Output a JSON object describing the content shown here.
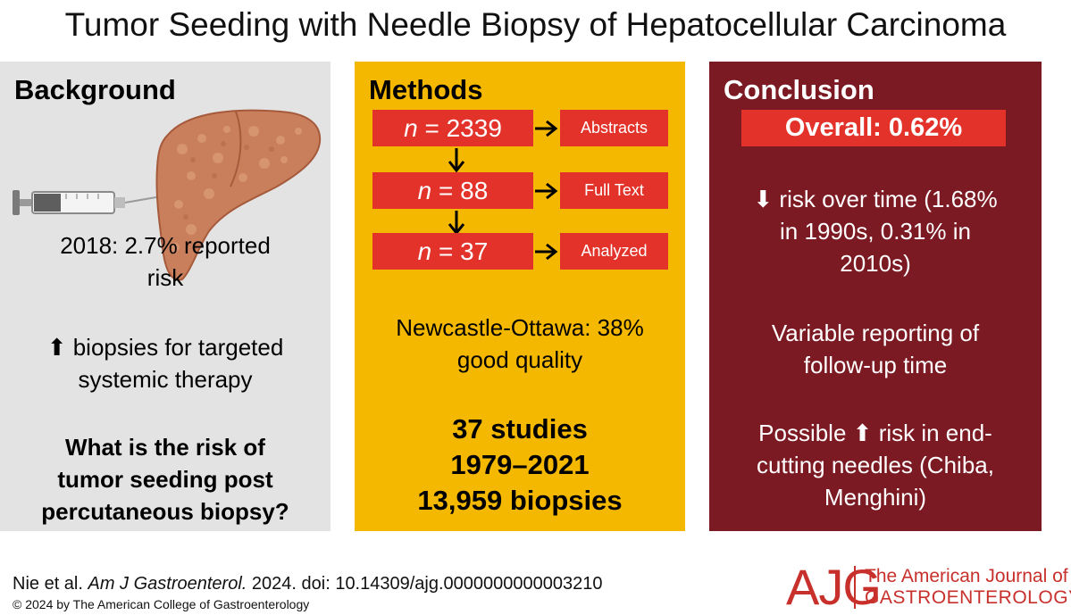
{
  "title": "Tumor Seeding with Needle Biopsy of Hepatocellular Carcinoma",
  "colors": {
    "background_panel": "#e3e3e3",
    "methods_panel": "#f5b800",
    "conclusion_panel": "#7b1a22",
    "box_red": "#e2322a",
    "logo_red": "#c8302c"
  },
  "background": {
    "heading": "Background",
    "illustration_icons": [
      "syringe-icon",
      "liver-icon"
    ],
    "point1_line1": "2018: 2.7% reported",
    "point1_line2": "risk",
    "point2_arrow": "⬆",
    "point2_line1": "biopsies for targeted",
    "point2_line2": "systemic therapy",
    "question_line1": "What is the risk of",
    "question_line2": "tumor seeding post",
    "question_line3": "percutaneous biopsy?"
  },
  "methods": {
    "heading": "Methods",
    "flow": [
      {
        "n_label": "n",
        "n_value": "= 2339",
        "stage": "Abstracts"
      },
      {
        "n_label": "n",
        "n_value": "= 88",
        "stage": "Full Text"
      },
      {
        "n_label": "n",
        "n_value": "= 37",
        "stage": "Analyzed"
      }
    ],
    "quality_line1": "Newcastle-Ottawa: 38%",
    "quality_line2": "good quality",
    "summary_line1": "37 studies",
    "summary_line2": "1979–2021",
    "summary_line3": "13,959 biopsies"
  },
  "conclusion": {
    "heading": "Conclusion",
    "overall": "Overall: 0.62%",
    "trend_arrow": "⬇",
    "trend_line1": "risk over time (1.68%",
    "trend_line2": "in 1990s, 0.31% in",
    "trend_line3": "2010s)",
    "reporting_line1": "Variable reporting of",
    "reporting_line2": "follow-up time",
    "needles_line1_a": "Possible",
    "needles_arrow": "⬆",
    "needles_line1_b": "risk in end-",
    "needles_line2": "cutting needles (Chiba,",
    "needles_line3": "Menghini)"
  },
  "footer": {
    "citation_authors": "Nie et al.",
    "citation_journal": "Am J Gastroenterol.",
    "citation_rest": "2024. doi: 10.14309/ajg.0000000000003210",
    "copyright": "© 2024 by The American College of Gastroenterology",
    "logo_mark": "AJG",
    "logo_name_line1": "The American Journal of",
    "logo_name_line2": "GASTROENTEROLOGY"
  }
}
